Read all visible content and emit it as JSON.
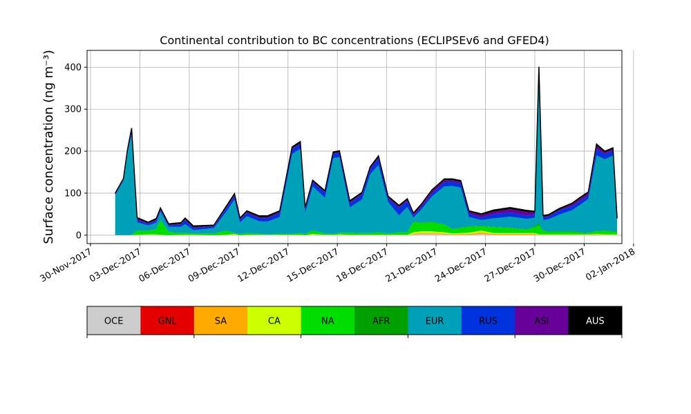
{
  "chart_data": {
    "type": "area",
    "stacked": true,
    "title": "Continental contribution to BC concentrations (ECLIPSEv6 and GFED4)",
    "ylabel": "Surface concentration (ng m⁻³)",
    "xlabel": "",
    "xlim": [
      "2017-11-29T19:00",
      "2018-01-01T07:00"
    ],
    "ylim": [
      -20,
      440
    ],
    "grid": true,
    "x_ticks": [
      "30-Nov-2017",
      "03-Dec-2017",
      "06-Dec-2017",
      "09-Dec-2017",
      "12-Dec-2017",
      "15-Dec-2017",
      "18-Dec-2017",
      "21-Dec-2017",
      "24-Dec-2017",
      "27-Dec-2017",
      "30-Dec-2017",
      "02-Jan-2018"
    ],
    "y_ticks": [
      0,
      100,
      200,
      300,
      400
    ],
    "legend_placement": "bottom (color bar below plot)",
    "categories": [
      "OCE",
      "GNL",
      "SA",
      "CA",
      "NA",
      "AFR",
      "EUR",
      "RUS",
      "ASI",
      "AUS"
    ],
    "colors": [
      "#cccccc",
      "#e50000",
      "#ffaa00",
      "#ccff00",
      "#00dd00",
      "#00a000",
      "#00a0b8",
      "#0033dd",
      "#660099",
      "#000000"
    ],
    "x": [
      "2017-12-01T12:00",
      "2017-12-02T00:00",
      "2017-12-02T06:00",
      "2017-12-02T12:00",
      "2017-12-02T20:00",
      "2017-12-03T12:00",
      "2017-12-04T00:00",
      "2017-12-04T06:00",
      "2017-12-04T18:00",
      "2017-12-05T12:00",
      "2017-12-05T18:00",
      "2017-12-06T06:00",
      "2017-12-07T12:00",
      "2017-12-08T06:00",
      "2017-12-08T18:00",
      "2017-12-09T02:00",
      "2017-12-09T12:00",
      "2017-12-10T06:00",
      "2017-12-10T18:00",
      "2017-12-11T12:00",
      "2017-12-12T06:00",
      "2017-12-12T18:00",
      "2017-12-13T01:00",
      "2017-12-13T12:00",
      "2017-12-14T06:00",
      "2017-12-14T18:00",
      "2017-12-15T03:00",
      "2017-12-15T18:00",
      "2017-12-16T12:00",
      "2017-12-17T00:00",
      "2017-12-17T12:00",
      "2017-12-18T02:00",
      "2017-12-18T18:00",
      "2017-12-19T06:00",
      "2017-12-19T15:00",
      "2017-12-20T02:00",
      "2017-12-20T18:00",
      "2017-12-21T12:00",
      "2017-12-22T00:00",
      "2017-12-22T12:00",
      "2017-12-23T00:00",
      "2017-12-23T18:00",
      "2017-12-24T12:00",
      "2017-12-25T12:00",
      "2017-12-26T12:00",
      "2017-12-27T00:00",
      "2017-12-27T06:00",
      "2017-12-27T12:00",
      "2017-12-27T20:00",
      "2017-12-28T12:00",
      "2017-12-29T06:00",
      "2017-12-29T18:00",
      "2017-12-30T06:00",
      "2017-12-30T18:00",
      "2017-12-31T06:00",
      "2017-12-31T18:00",
      "2018-01-01T00:00"
    ],
    "series": [
      {
        "name": "OCE",
        "values": [
          0,
          0,
          0,
          0,
          0,
          1,
          0,
          0,
          0,
          0,
          0,
          0,
          0,
          0,
          1,
          0,
          0,
          0,
          0,
          0,
          0,
          0,
          0,
          1,
          0,
          0,
          1,
          0,
          0,
          0,
          0,
          0,
          0,
          0,
          2,
          3,
          3,
          2,
          1,
          1,
          1,
          3,
          1,
          1,
          1,
          1,
          0,
          0,
          0,
          0,
          0,
          0,
          0,
          0,
          0,
          0,
          0
        ]
      },
      {
        "name": "GNL",
        "values": [
          0,
          0,
          0,
          0,
          0,
          0,
          0,
          0,
          0,
          0,
          0,
          0,
          0,
          0,
          0,
          0,
          0,
          0,
          0,
          0,
          0,
          0,
          0,
          0,
          0,
          0,
          0,
          0,
          0,
          0,
          0,
          0,
          0,
          0,
          0,
          0,
          0,
          0,
          0,
          0,
          0,
          0,
          0,
          0,
          0,
          0,
          0,
          0,
          0,
          0,
          0,
          0,
          0,
          0,
          0,
          0,
          0
        ]
      },
      {
        "name": "SA",
        "values": [
          0,
          0,
          0,
          0,
          0,
          0,
          1,
          0,
          0,
          0,
          0,
          0,
          0,
          0,
          1,
          0,
          0,
          0,
          0,
          0,
          0,
          0,
          0,
          1,
          0,
          0,
          0,
          0,
          0,
          0,
          0,
          0,
          0,
          0,
          2,
          2,
          2,
          2,
          1,
          2,
          2,
          4,
          2,
          2,
          2,
          2,
          1,
          1,
          1,
          1,
          1,
          1,
          1,
          2,
          1,
          1,
          1
        ]
      },
      {
        "name": "CA",
        "values": [
          0,
          0,
          0,
          0,
          1,
          1,
          1,
          1,
          0,
          1,
          1,
          1,
          0,
          1,
          1,
          0,
          1,
          1,
          1,
          1,
          1,
          1,
          0,
          1,
          1,
          1,
          1,
          1,
          1,
          1,
          1,
          1,
          1,
          1,
          3,
          4,
          4,
          3,
          2,
          2,
          3,
          4,
          2,
          2,
          2,
          2,
          1,
          1,
          1,
          1,
          1,
          1,
          1,
          1,
          1,
          1,
          1
        ]
      },
      {
        "name": "NA",
        "values": [
          0,
          0,
          0,
          1,
          10,
          8,
          12,
          35,
          8,
          4,
          5,
          3,
          4,
          10,
          2,
          3,
          4,
          2,
          1,
          2,
          2,
          4,
          3,
          8,
          3,
          2,
          4,
          5,
          4,
          4,
          6,
          3,
          6,
          6,
          24,
          20,
          22,
          18,
          10,
          12,
          14,
          10,
          14,
          12,
          8,
          14,
          22,
          8,
          6,
          6,
          6,
          4,
          3,
          6,
          8,
          6,
          6
        ]
      },
      {
        "name": "AFR",
        "values": [
          0,
          0,
          0,
          0,
          0,
          1,
          0,
          0,
          0,
          0,
          0,
          0,
          0,
          0,
          0,
          0,
          0,
          0,
          0,
          0,
          0,
          0,
          0,
          0,
          0,
          0,
          0,
          0,
          0,
          0,
          0,
          0,
          0,
          0,
          1,
          1,
          1,
          1,
          1,
          1,
          1,
          1,
          1,
          1,
          1,
          2,
          4,
          1,
          1,
          1,
          1,
          1,
          1,
          1,
          1,
          1,
          1
        ]
      },
      {
        "name": "EUR",
        "values": [
          95,
          130,
          195,
          240,
          20,
          12,
          16,
          20,
          12,
          15,
          20,
          8,
          13,
          45,
          80,
          27,
          40,
          30,
          30,
          40,
          190,
          200,
          50,
          105,
          85,
          180,
          180,
          60,
          80,
          140,
          160,
          75,
          40,
          60,
          10,
          30,
          60,
          90,
          102,
          95,
          22,
          14,
          20,
          26,
          25,
          20,
          350,
          25,
          29,
          40,
          50,
          65,
          80,
          180,
          170,
          180,
          25
        ]
      },
      {
        "name": "RUS",
        "values": [
          2,
          2,
          5,
          8,
          5,
          4,
          5,
          4,
          4,
          5,
          10,
          5,
          4,
          8,
          8,
          6,
          8,
          8,
          8,
          10,
          12,
          12,
          8,
          10,
          12,
          10,
          10,
          10,
          12,
          12,
          15,
          8,
          18,
          14,
          5,
          6,
          8,
          10,
          10,
          10,
          8,
          6,
          10,
          10,
          8,
          8,
          10,
          6,
          6,
          10,
          10,
          10,
          8,
          15,
          12,
          12,
          3
        ]
      },
      {
        "name": "ASI",
        "values": [
          1,
          1,
          1,
          1,
          3,
          2,
          2,
          2,
          1,
          2,
          2,
          2,
          1,
          2,
          2,
          2,
          2,
          2,
          3,
          2,
          2,
          2,
          2,
          2,
          2,
          2,
          2,
          3,
          2,
          3,
          3,
          3,
          3,
          3,
          3,
          4,
          5,
          5,
          4,
          4,
          4,
          6,
          6,
          8,
          8,
          5,
          5,
          2,
          2,
          2,
          4,
          5,
          6,
          8,
          4,
          4,
          1
        ]
      },
      {
        "name": "AUS",
        "values": [
          2,
          2,
          3,
          5,
          3,
          2,
          3,
          3,
          2,
          3,
          3,
          3,
          2,
          3,
          4,
          3,
          3,
          3,
          3,
          3,
          3,
          4,
          3,
          3,
          3,
          3,
          3,
          3,
          3,
          3,
          4,
          3,
          3,
          3,
          3,
          3,
          3,
          3,
          3,
          3,
          3,
          3,
          4,
          4,
          4,
          3,
          8,
          3,
          3,
          3,
          3,
          3,
          3,
          4,
          3,
          3,
          2
        ]
      }
    ]
  }
}
